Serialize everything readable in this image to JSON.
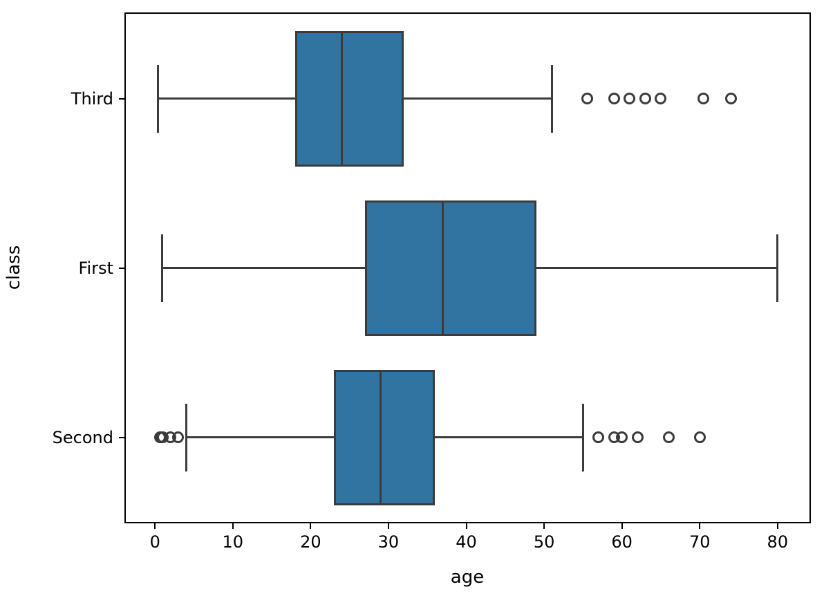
{
  "chart_data": {
    "type": "boxplot",
    "orientation": "horizontal",
    "title": "",
    "xlabel": "age",
    "ylabel": "class",
    "categories": [
      "Third",
      "First",
      "Second"
    ],
    "xlim": [
      -3.75,
      84.1
    ],
    "xticks": [
      0,
      10,
      20,
      30,
      40,
      50,
      60,
      70,
      80
    ],
    "grid": false,
    "legend": null,
    "series": [
      {
        "category": "Third",
        "whisker_low": 0.42,
        "q1": 18,
        "median": 24,
        "q3": 32,
        "whisker_high": 51,
        "outliers": [
          55.5,
          59,
          61,
          63,
          65,
          70.5,
          74
        ]
      },
      {
        "category": "First",
        "whisker_low": 0.92,
        "q1": 27,
        "median": 37,
        "q3": 49,
        "whisker_high": 80,
        "outliers": []
      },
      {
        "category": "Second",
        "whisker_low": 4,
        "q1": 23,
        "median": 29,
        "q3": 36,
        "whisker_high": 55,
        "outliers": [
          0.67,
          0.83,
          1,
          2,
          3,
          57,
          59,
          60,
          62,
          66,
          70
        ]
      }
    ],
    "colors": {
      "box_fill": "#3274a1",
      "line": "#3b3b3b",
      "spine": "#000000",
      "text": "#000000",
      "background": "#ffffff"
    }
  }
}
